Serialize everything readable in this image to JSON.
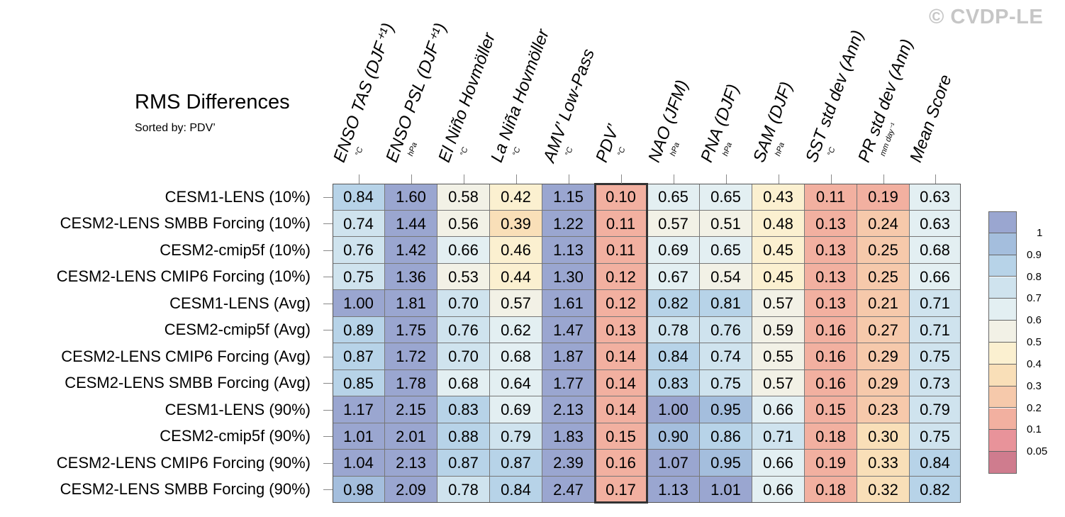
{
  "header": {
    "title": "RMS Differences",
    "subtitle": "Sorted by: PDV’",
    "watermark": "© CVDP-LE"
  },
  "chart_data": {
    "type": "heatmap",
    "title": "RMS Differences",
    "sorted_by": "PDV’",
    "columns": [
      {
        "name": "ENSO TAS (DJF⁺¹)",
        "unit": "°C"
      },
      {
        "name": "ENSO PSL (DJF⁺¹)",
        "unit": "hPa"
      },
      {
        "name": "El Niño Hovmöller",
        "unit": "°C"
      },
      {
        "name": "La Niña Hovmöller",
        "unit": "°C"
      },
      {
        "name": "AMV’ Low-Pass",
        "unit": "°C"
      },
      {
        "name": "PDV’",
        "unit": "°C"
      },
      {
        "name": "NAO (JFM)",
        "unit": "hPa"
      },
      {
        "name": "PNA (DJF)",
        "unit": "hPa"
      },
      {
        "name": "SAM (DJF)",
        "unit": "hPa"
      },
      {
        "name": "SST std dev (Ann)",
        "unit": "°C"
      },
      {
        "name": "PR std dev (Ann)",
        "unit": "mm day⁻¹"
      },
      {
        "name": "Mean Score",
        "unit": ""
      }
    ],
    "rows": [
      "CESM1-LENS (10%)",
      "CESM2-LENS SMBB Forcing (10%)",
      "CESM2-cmip5f (10%)",
      "CESM2-LENS CMIP6 Forcing (10%)",
      "CESM1-LENS (Avg)",
      "CESM2-cmip5f (Avg)",
      "CESM2-LENS CMIP6 Forcing (Avg)",
      "CESM2-LENS SMBB Forcing (Avg)",
      "CESM1-LENS (90%)",
      "CESM2-cmip5f (90%)",
      "CESM2-LENS CMIP6 Forcing (90%)",
      "CESM2-LENS SMBB Forcing (90%)"
    ],
    "values": [
      [
        "0.84",
        "1.60",
        "0.58",
        "0.42",
        "1.15",
        "0.10",
        "0.65",
        "0.65",
        "0.43",
        "0.11",
        "0.19",
        "0.63"
      ],
      [
        "0.74",
        "1.44",
        "0.56",
        "0.39",
        "1.22",
        "0.11",
        "0.57",
        "0.51",
        "0.48",
        "0.13",
        "0.24",
        "0.63"
      ],
      [
        "0.76",
        "1.42",
        "0.66",
        "0.46",
        "1.13",
        "0.11",
        "0.69",
        "0.65",
        "0.45",
        "0.13",
        "0.25",
        "0.68"
      ],
      [
        "0.75",
        "1.36",
        "0.53",
        "0.44",
        "1.30",
        "0.12",
        "0.67",
        "0.54",
        "0.45",
        "0.13",
        "0.25",
        "0.66"
      ],
      [
        "1.00",
        "1.81",
        "0.70",
        "0.57",
        "1.61",
        "0.12",
        "0.82",
        "0.81",
        "0.57",
        "0.13",
        "0.21",
        "0.71"
      ],
      [
        "0.89",
        "1.75",
        "0.76",
        "0.62",
        "1.47",
        "0.13",
        "0.78",
        "0.76",
        "0.59",
        "0.16",
        "0.27",
        "0.71"
      ],
      [
        "0.87",
        "1.72",
        "0.70",
        "0.68",
        "1.87",
        "0.14",
        "0.84",
        "0.74",
        "0.55",
        "0.16",
        "0.29",
        "0.75"
      ],
      [
        "0.85",
        "1.78",
        "0.68",
        "0.64",
        "1.77",
        "0.14",
        "0.83",
        "0.75",
        "0.57",
        "0.16",
        "0.29",
        "0.73"
      ],
      [
        "1.17",
        "2.15",
        "0.83",
        "0.69",
        "2.13",
        "0.14",
        "1.00",
        "0.95",
        "0.66",
        "0.15",
        "0.23",
        "0.79"
      ],
      [
        "1.01",
        "2.01",
        "0.88",
        "0.79",
        "1.83",
        "0.15",
        "0.90",
        "0.86",
        "0.71",
        "0.18",
        "0.30",
        "0.75"
      ],
      [
        "1.04",
        "2.13",
        "0.87",
        "0.87",
        "2.39",
        "0.16",
        "1.07",
        "0.95",
        "0.66",
        "0.19",
        "0.33",
        "0.84"
      ],
      [
        "0.98",
        "2.09",
        "0.78",
        "0.84",
        "2.47",
        "0.17",
        "1.13",
        "1.01",
        "0.66",
        "0.18",
        "0.32",
        "0.82"
      ]
    ],
    "highlighted_column": "PDV’",
    "colorbar": {
      "levels": [
        0.05,
        0.1,
        0.2,
        0.3,
        0.4,
        0.5,
        0.6,
        0.7,
        0.8,
        0.9,
        1
      ],
      "labels": [
        "1",
        "0.9",
        "0.8",
        "0.7",
        "0.6",
        "0.5",
        "0.4",
        "0.3",
        "0.2",
        "0.1",
        "0.05"
      ],
      "colors": [
        "#cf7c8e",
        "#e8939a",
        "#f2b0a0",
        "#f6c9ab",
        "#f9dfb8",
        "#fbf0d0",
        "#f2f1e6",
        "#e3eff2",
        "#cfe3ee",
        "#b7d3e8",
        "#a4bedd",
        "#9aa6d0"
      ]
    }
  }
}
